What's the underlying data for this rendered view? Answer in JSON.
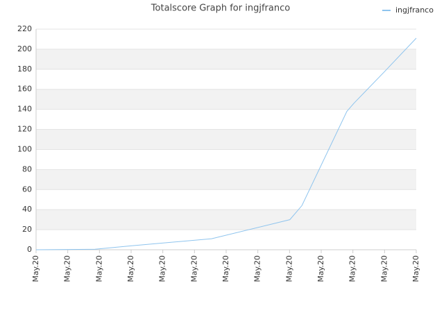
{
  "chart_data": {
    "type": "line",
    "title": "Totalscore Graph for ingjfranco",
    "x": [
      0,
      1.86,
      3.02,
      5.54,
      8.01,
      8.39,
      9.81,
      10.03,
      11.01,
      12
    ],
    "series": [
      {
        "name": "ingjfranco",
        "color": "#8ec4ee",
        "values": [
          0,
          0.5,
          4,
          11,
          30,
          44,
          138,
          146,
          178,
          211
        ]
      }
    ],
    "xlim": [
      0,
      12
    ],
    "xticks": [
      {
        "value": 0,
        "label": "May.20"
      },
      {
        "value": 1,
        "label": "May.20"
      },
      {
        "value": 2,
        "label": "May.20"
      },
      {
        "value": 3,
        "label": "May.20"
      },
      {
        "value": 4,
        "label": "May.20"
      },
      {
        "value": 5,
        "label": "May.20"
      },
      {
        "value": 6,
        "label": "May.20"
      },
      {
        "value": 7,
        "label": "May.20"
      },
      {
        "value": 8,
        "label": "May.20"
      },
      {
        "value": 9,
        "label": "May.20"
      },
      {
        "value": 10,
        "label": "May.20"
      },
      {
        "value": 11,
        "label": "May.20"
      },
      {
        "value": 12,
        "label": "May.20"
      }
    ],
    "ylim": [
      0,
      220
    ],
    "yticks": [
      0,
      20,
      40,
      60,
      80,
      100,
      120,
      140,
      160,
      180,
      200,
      220
    ],
    "grid": true,
    "alternate_band_color": "#f2f2f2",
    "legend": "top-right"
  }
}
